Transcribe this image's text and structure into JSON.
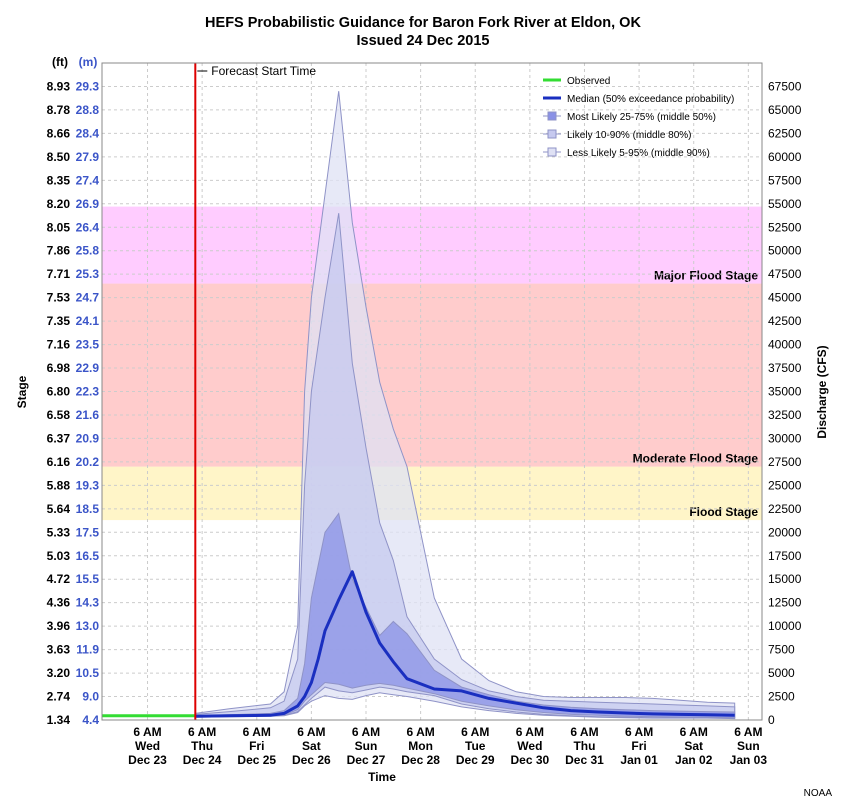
{
  "chart_data": {
    "type": "area",
    "title": "HEFS Probabilistic Guidance for Baron Fork River at Eldon, OK",
    "subtitle": "Issued 24 Dec 2015",
    "xlabel": "Time",
    "ylabel_left": "Stage",
    "ylabel_right": "Discharge (CFS)",
    "unit_ft": "(ft)",
    "unit_m": "(m)",
    "credit": "NOAA",
    "grid": true,
    "legend_position": "top-right",
    "x_range_hours": [
      0,
      264
    ],
    "y_range_cfs": [
      0,
      70000
    ],
    "stage_ticks": [
      {
        "cfs": 0,
        "ft": "1.34",
        "m": "4.4"
      },
      {
        "cfs": 2500,
        "ft": "2.74",
        "m": "9.0"
      },
      {
        "cfs": 5000,
        "ft": "3.20",
        "m": "10.5"
      },
      {
        "cfs": 7500,
        "ft": "3.63",
        "m": "11.9"
      },
      {
        "cfs": 10000,
        "ft": "3.96",
        "m": "13.0"
      },
      {
        "cfs": 12500,
        "ft": "4.36",
        "m": "14.3"
      },
      {
        "cfs": 15000,
        "ft": "4.72",
        "m": "15.5"
      },
      {
        "cfs": 17500,
        "ft": "5.03",
        "m": "16.5"
      },
      {
        "cfs": 20000,
        "ft": "5.33",
        "m": "17.5"
      },
      {
        "cfs": 22500,
        "ft": "5.64",
        "m": "18.5"
      },
      {
        "cfs": 25000,
        "ft": "5.88",
        "m": "19.3"
      },
      {
        "cfs": 27500,
        "ft": "6.16",
        "m": "20.2"
      },
      {
        "cfs": 30000,
        "ft": "6.37",
        "m": "20.9"
      },
      {
        "cfs": 32500,
        "ft": "6.58",
        "m": "21.6"
      },
      {
        "cfs": 35000,
        "ft": "6.80",
        "m": "22.3"
      },
      {
        "cfs": 37500,
        "ft": "6.98",
        "m": "22.9"
      },
      {
        "cfs": 40000,
        "ft": "7.16",
        "m": "23.5"
      },
      {
        "cfs": 42500,
        "ft": "7.35",
        "m": "24.1"
      },
      {
        "cfs": 45000,
        "ft": "7.53",
        "m": "24.7"
      },
      {
        "cfs": 47500,
        "ft": "7.71",
        "m": "25.3"
      },
      {
        "cfs": 50000,
        "ft": "7.86",
        "m": "25.8"
      },
      {
        "cfs": 52500,
        "ft": "8.05",
        "m": "26.4"
      },
      {
        "cfs": 55000,
        "ft": "8.20",
        "m": "26.9"
      },
      {
        "cfs": 57500,
        "ft": "8.35",
        "m": "27.4"
      },
      {
        "cfs": 60000,
        "ft": "8.50",
        "m": "27.9"
      },
      {
        "cfs": 62500,
        "ft": "8.66",
        "m": "28.4"
      },
      {
        "cfs": 65000,
        "ft": "8.78",
        "m": "28.8"
      },
      {
        "cfs": 67500,
        "ft": "8.93",
        "m": "29.3"
      }
    ],
    "discharge_ticks": [
      0,
      2500,
      5000,
      7500,
      10000,
      12500,
      15000,
      17500,
      20000,
      22500,
      25000,
      27500,
      30000,
      32500,
      35000,
      37500,
      40000,
      42500,
      45000,
      47500,
      50000,
      52500,
      55000,
      57500,
      60000,
      62500,
      65000,
      67500
    ],
    "x_ticks": [
      {
        "h": 6,
        "l1": "6 AM",
        "l2": "Wed",
        "l3": "Dec 23"
      },
      {
        "h": 30,
        "l1": "6 AM",
        "l2": "Thu",
        "l3": "Dec 24"
      },
      {
        "h": 54,
        "l1": "6 AM",
        "l2": "Fri",
        "l3": "Dec 25"
      },
      {
        "h": 78,
        "l1": "6 AM",
        "l2": "Sat",
        "l3": "Dec 26"
      },
      {
        "h": 102,
        "l1": "6 AM",
        "l2": "Sun",
        "l3": "Dec 27"
      },
      {
        "h": 126,
        "l1": "6 AM",
        "l2": "Mon",
        "l3": "Dec 28"
      },
      {
        "h": 150,
        "l1": "6 AM",
        "l2": "Tue",
        "l3": "Dec 29"
      },
      {
        "h": 174,
        "l1": "6 AM",
        "l2": "Wed",
        "l3": "Dec 30"
      },
      {
        "h": 198,
        "l1": "6 AM",
        "l2": "Thu",
        "l3": "Dec 31"
      },
      {
        "h": 222,
        "l1": "6 AM",
        "l2": "Fri",
        "l3": "Jan 01"
      },
      {
        "h": 246,
        "l1": "6 AM",
        "l2": "Sat",
        "l3": "Jan 02"
      },
      {
        "h": 270,
        "l1": "6 AM",
        "l2": "Sun",
        "l3": "Jan 03"
      }
    ],
    "flood_zones": [
      {
        "name": "Flood Stage",
        "from": 21300,
        "to": 27000,
        "color": "#fff5c8"
      },
      {
        "name": "Moderate Flood Stage",
        "from": 27000,
        "to": 46500,
        "color": "#ffcccc"
      },
      {
        "name": "Major Flood Stage",
        "from": 46500,
        "to": 54700,
        "color": "#ffccff"
      }
    ],
    "forecast_start": {
      "h": 27,
      "label": "Forecast Start Time",
      "color": "#dd0000"
    },
    "observed": {
      "name": "Observed",
      "color": "#33dd33",
      "x": [
        -14,
        27
      ],
      "y": [
        450,
        450
      ]
    },
    "median": {
      "name": "Median (50% exceedance probability)",
      "color": "#1a2fc0",
      "x": [
        27,
        42,
        60,
        66,
        72,
        75,
        78,
        81,
        84,
        90,
        96,
        102,
        108,
        114,
        120,
        132,
        144,
        156,
        168,
        180,
        192,
        204,
        216,
        228,
        240,
        252,
        264
      ],
      "y": [
        400,
        450,
        500,
        700,
        1500,
        2500,
        4000,
        6500,
        9500,
        12800,
        15800,
        11500,
        8200,
        6200,
        4400,
        3300,
        3100,
        2300,
        1800,
        1300,
        1000,
        850,
        750,
        650,
        600,
        550,
        500
      ]
    },
    "bands": [
      {
        "name": "Less Likely 5-95% (middle 90%)",
        "color": "#dfe1f4",
        "x": [
          27,
          42,
          60,
          66,
          72,
          75,
          78,
          84,
          90,
          96,
          102,
          108,
          114,
          120,
          132,
          144,
          156,
          168,
          180,
          192,
          204,
          216,
          228,
          240,
          252,
          264
        ],
        "lower": [
          300,
          350,
          400,
          450,
          800,
          1500,
          2000,
          2600,
          2300,
          2200,
          2600,
          2900,
          2700,
          2500,
          2000,
          1400,
          1000,
          700,
          500,
          400,
          300,
          250,
          200,
          200,
          200,
          150
        ],
        "upper": [
          700,
          1200,
          1700,
          3000,
          10000,
          35000,
          45000,
          56000,
          67000,
          53000,
          44000,
          36000,
          31000,
          27000,
          13000,
          6500,
          4200,
          3000,
          2500,
          2400,
          2400,
          2400,
          2300,
          2100,
          1900,
          1800
        ]
      },
      {
        "name": "Likely 10-90% (middle 80%)",
        "color": "#c6c9ef",
        "x": [
          27,
          42,
          60,
          66,
          72,
          75,
          78,
          84,
          90,
          96,
          102,
          108,
          114,
          120,
          132,
          144,
          156,
          168,
          180,
          192,
          204,
          216,
          228,
          240,
          252,
          264
        ],
        "lower": [
          350,
          400,
          450,
          500,
          900,
          1600,
          2300,
          3500,
          3100,
          2900,
          3200,
          3500,
          3300,
          3000,
          2600,
          1700,
          1200,
          850,
          600,
          450,
          350,
          300,
          250,
          250,
          250,
          200
        ],
        "upper": [
          600,
          900,
          1300,
          2000,
          6500,
          25000,
          35000,
          45000,
          54000,
          38000,
          29000,
          21000,
          17000,
          11000,
          6500,
          4300,
          3100,
          2500,
          2100,
          2000,
          1900,
          1800,
          1700,
          1600,
          1500,
          1400
        ]
      },
      {
        "name": "Most Likely 25-75% (middle 50%)",
        "color": "#8a91e6",
        "x": [
          27,
          42,
          60,
          66,
          72,
          75,
          78,
          84,
          90,
          96,
          102,
          108,
          114,
          120,
          132,
          144,
          156,
          168,
          180,
          192,
          204,
          216,
          228,
          240,
          252,
          264
        ],
        "lower": [
          380,
          420,
          480,
          550,
          1100,
          2000,
          2700,
          4000,
          3800,
          3400,
          3700,
          3900,
          3700,
          3400,
          2800,
          2000,
          1500,
          1100,
          800,
          600,
          500,
          400,
          350,
          300,
          300,
          250
        ],
        "upper": [
          450,
          550,
          700,
          1000,
          2300,
          6000,
          13000,
          20000,
          22000,
          15000,
          12000,
          9000,
          10500,
          9200,
          5300,
          3500,
          2700,
          2000,
          1600,
          1350,
          1200,
          1100,
          1000,
          950,
          900,
          850
        ]
      }
    ]
  }
}
